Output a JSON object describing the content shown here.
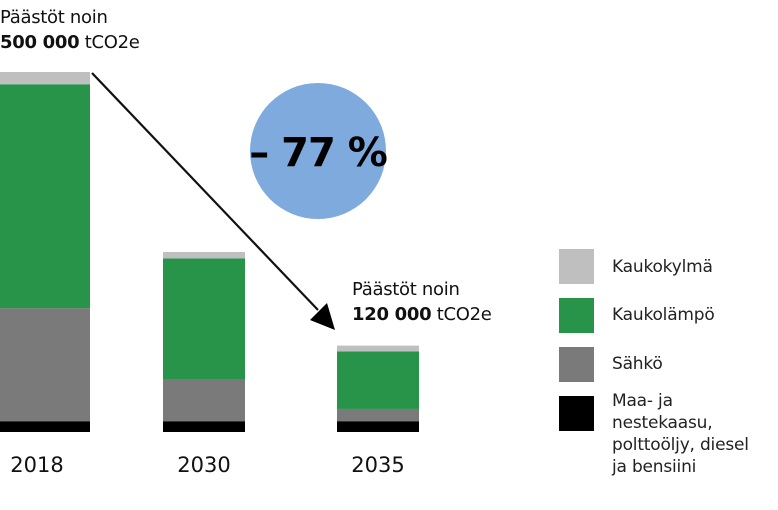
{
  "chart_data": {
    "type": "bar",
    "stacked": true,
    "categories": [
      "2018",
      "2030",
      "2035"
    ],
    "unit": "tCO2e",
    "ylim": [
      0,
      500000
    ],
    "grid": false,
    "legend_position": "right",
    "series": [
      {
        "name": "Maa- ja nestekaasu, polttoöljy, diesel ja bensiini",
        "color": "#000000",
        "values": [
          15000,
          15000,
          15000
        ]
      },
      {
        "name": "Sähkö",
        "color": "#7a7a7a",
        "values": [
          157000,
          58000,
          17000
        ]
      },
      {
        "name": "Kaukolämpö",
        "color": "#27944a",
        "values": [
          311000,
          168000,
          80000
        ]
      },
      {
        "name": "Kaukokylmä",
        "color": "#bfbfbf",
        "values": [
          17000,
          9000,
          8000
        ]
      }
    ],
    "annotations": {
      "start": {
        "line1": "Päästöt noin",
        "value": "500 000",
        "unit": "tCO2e"
      },
      "end": {
        "line1": "Päästöt noin",
        "value": "120 000",
        "unit": "tCO2e"
      },
      "change": "– 77 %",
      "change_color": "#7eaade"
    },
    "legend_lines": {
      "fuel": [
        "Maa- ja nestekaasu,",
        "polttoöljy, diesel",
        "ja bensiini"
      ]
    }
  }
}
